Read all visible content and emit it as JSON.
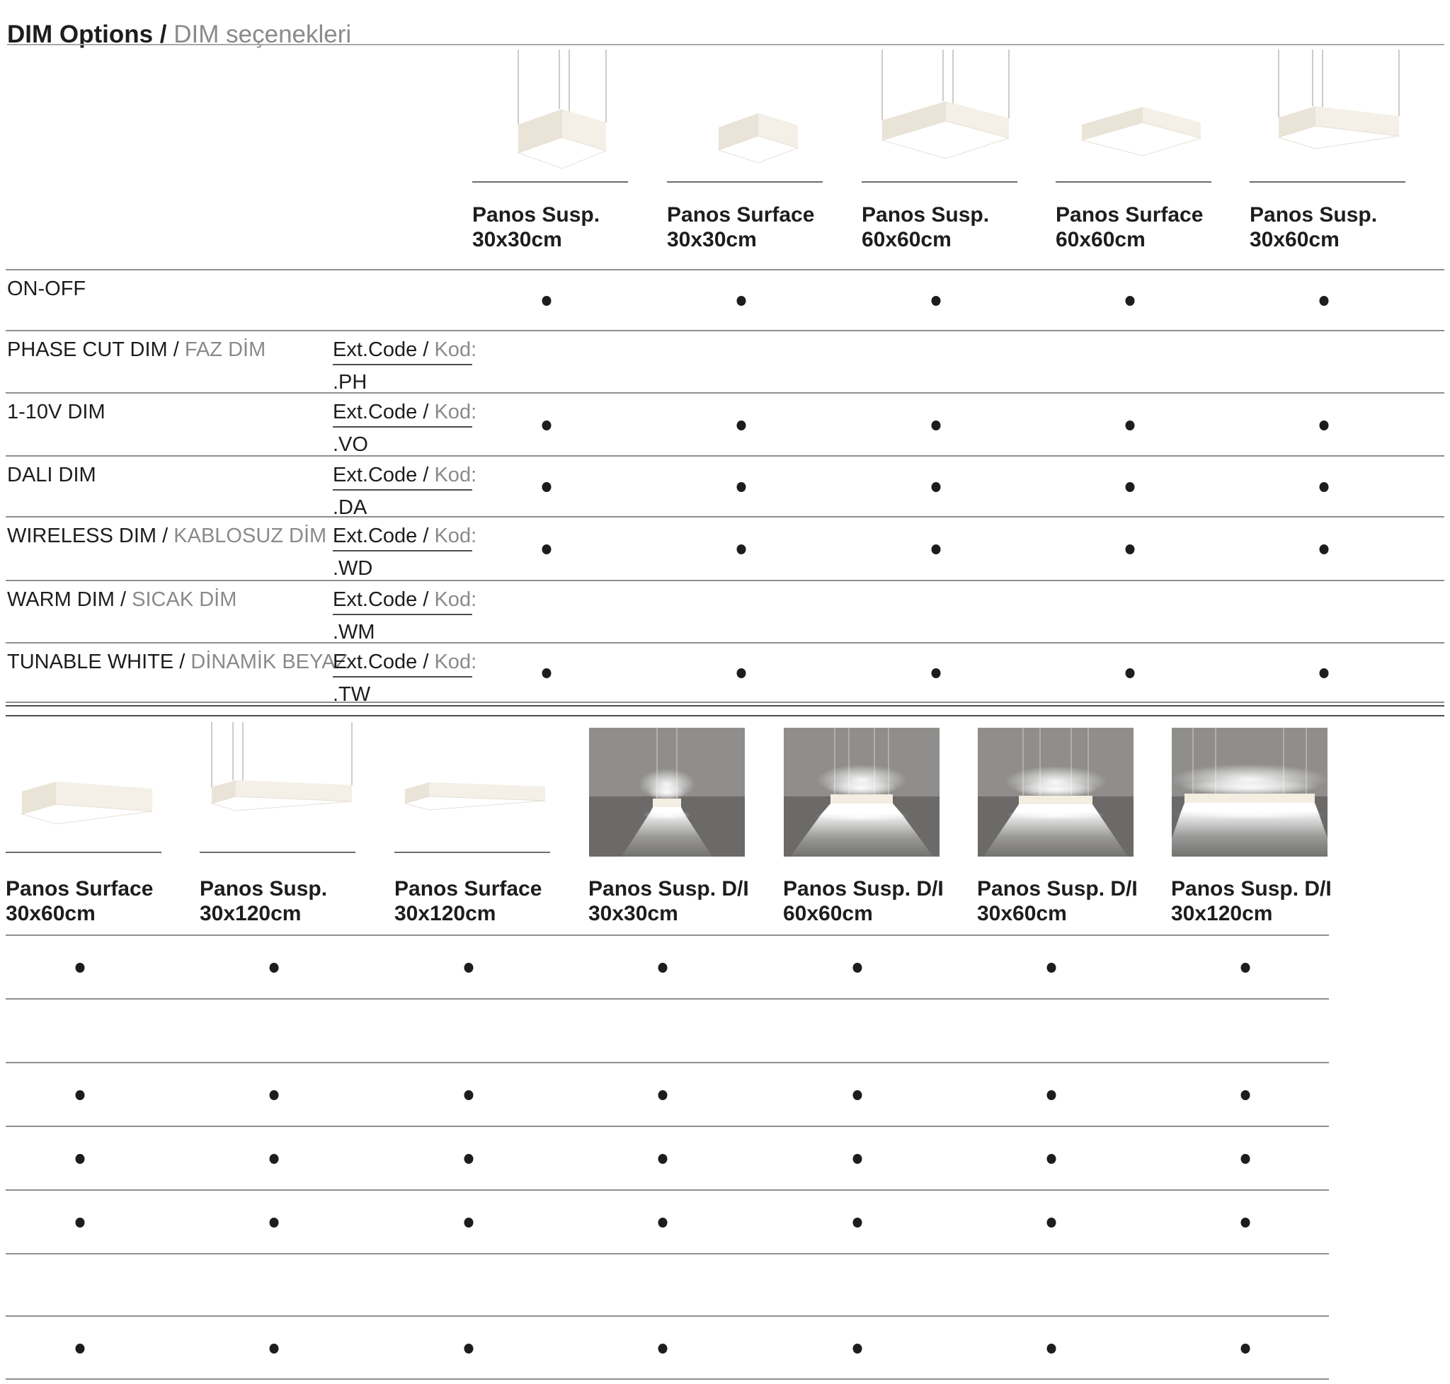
{
  "page": {
    "title_en": "DIM Options /",
    "title_tr": "DIM seçenekleri",
    "background": "#ffffff"
  },
  "ext_code": {
    "label_en": "Ext.Code /",
    "label_tr": "Kod:"
  },
  "colors": {
    "text_dark": "#1d1d1b",
    "text_gray": "#8a8a89",
    "rule_light": "#a8a8a7",
    "rule_mid": "#8f8f8e",
    "rule_dark": "#4c4c4b",
    "underline_dark": "#6f6e6d",
    "dot": "#1d1d1b",
    "wire": "#b5b1aa",
    "lamp_cream_left": "#eae3d7",
    "lamp_cream_right": "#f4efe7",
    "lamp_diffuser": "#ffffff",
    "photo_wall": "#8f8e8c",
    "photo_floor": "#6b6a68"
  },
  "section1": {
    "columns": [
      {
        "name": "Panos Susp.",
        "size": "30x30cm",
        "image": "susp-30x30"
      },
      {
        "name": "Panos Surface",
        "size": "30x30cm",
        "image": "surface-30x30"
      },
      {
        "name": "Panos Susp.",
        "size": "60x60cm",
        "image": "susp-60x60"
      },
      {
        "name": "Panos Surface",
        "size": "60x60cm",
        "image": "surface-60x60"
      },
      {
        "name": "Panos Susp.",
        "size": "30x60cm",
        "image": "susp-30x60"
      }
    ]
  },
  "section2": {
    "columns": [
      {
        "name": "Panos Surface",
        "size": "30x60cm",
        "image": "surface-30x60"
      },
      {
        "name": "Panos Susp.",
        "size": "30x120cm",
        "image": "susp-30x120"
      },
      {
        "name": "Panos Surface",
        "size": "30x120cm",
        "image": "surface-30x120"
      },
      {
        "name": "Panos Susp. D/I",
        "size": "30x30cm",
        "image": "photo-di-30x30"
      },
      {
        "name": "Panos Susp. D/I",
        "size": "60x60cm",
        "image": "photo-di-60x60"
      },
      {
        "name": "Panos Susp. D/I",
        "size": "30x60cm",
        "image": "photo-di-30x60"
      },
      {
        "name": "Panos Susp. D/I",
        "size": "30x120cm",
        "image": "photo-di-30x120"
      }
    ]
  },
  "options": [
    {
      "label_en": "ON-OFF",
      "label_tr": "",
      "code": "",
      "sec1": [
        1,
        1,
        1,
        1,
        1
      ],
      "sec2": [
        1,
        1,
        1,
        1,
        1,
        1,
        1
      ]
    },
    {
      "label_en": "PHASE CUT DIM /",
      "label_tr": "FAZ DİM",
      "code": ".PH",
      "sec1": [
        0,
        0,
        0,
        0,
        0
      ],
      "sec2": [
        0,
        0,
        0,
        0,
        0,
        0,
        0
      ]
    },
    {
      "label_en": "1-10V DIM",
      "label_tr": "",
      "code": ".VO",
      "sec1": [
        1,
        1,
        1,
        1,
        1
      ],
      "sec2": [
        1,
        1,
        1,
        1,
        1,
        1,
        1
      ]
    },
    {
      "label_en": "DALI DIM",
      "label_tr": "",
      "code": ".DA",
      "sec1": [
        1,
        1,
        1,
        1,
        1
      ],
      "sec2": [
        1,
        1,
        1,
        1,
        1,
        1,
        1
      ]
    },
    {
      "label_en": "WIRELESS DIM /",
      "label_tr": "KABLOSUZ DİM",
      "code": ".WD",
      "sec1": [
        1,
        1,
        1,
        1,
        1
      ],
      "sec2": [
        1,
        1,
        1,
        1,
        1,
        1,
        1
      ]
    },
    {
      "label_en": "WARM DIM /",
      "label_tr": "SICAK DİM",
      "code": ".WM",
      "sec1": [
        0,
        0,
        0,
        0,
        0
      ],
      "sec2": [
        0,
        0,
        0,
        0,
        0,
        0,
        0
      ]
    },
    {
      "label_en": "TUNABLE WHITE /",
      "label_tr": "DİNAMİK BEYAZ",
      "code": ".TW",
      "sec1": [
        1,
        1,
        1,
        1,
        1
      ],
      "sec2": [
        1,
        1,
        1,
        1,
        1,
        1,
        1
      ]
    }
  ]
}
